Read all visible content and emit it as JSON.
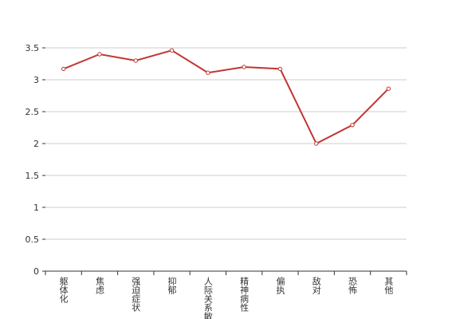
{
  "chart_data": {
    "type": "line",
    "categories": [
      "躯体化",
      "焦虑",
      "强迫症状",
      "抑郁",
      "人际关系敏感",
      "精神病性",
      "偏执",
      "敌对",
      "恐怖",
      "其他"
    ],
    "series": [
      {
        "color": "#c23531",
        "values": [
          3.17,
          3.4,
          3.3,
          3.46,
          3.11,
          3.2,
          3.17,
          2.0,
          2.29,
          2.86
        ]
      }
    ],
    "ylim": [
      0,
      3.5
    ],
    "yticks": [
      0,
      0.5,
      1,
      1.5,
      2,
      2.5,
      3,
      3.5
    ],
    "grid": true
  }
}
